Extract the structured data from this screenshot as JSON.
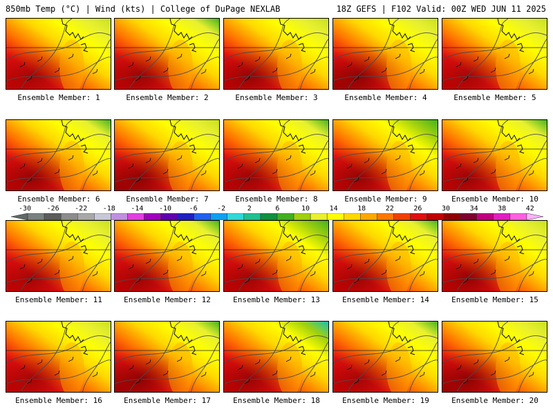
{
  "header": {
    "left": "850mb Temp (°C) | Wind (kts) | College of DuPage NEXLAB",
    "right": "18Z GEFS | F102 Valid: 00Z WED JUN 11 2025"
  },
  "members": [
    {
      "label": "Ensemble Member: 1",
      "warmth": 0.55,
      "cool_ne": 0.35
    },
    {
      "label": "Ensemble Member: 2",
      "warmth": 0.65,
      "cool_ne": 0.55
    },
    {
      "label": "Ensemble Member: 3",
      "warmth": 0.7,
      "cool_ne": 0.25
    },
    {
      "label": "Ensemble Member: 4",
      "warmth": 0.75,
      "cool_ne": 0.45
    },
    {
      "label": "Ensemble Member: 5",
      "warmth": 0.55,
      "cool_ne": 0.4
    },
    {
      "label": "Ensemble Member: 6",
      "warmth": 0.7,
      "cool_ne": 0.6
    },
    {
      "label": "Ensemble Member: 7",
      "warmth": 0.75,
      "cool_ne": 0.35
    },
    {
      "label": "Ensemble Member: 8",
      "warmth": 0.65,
      "cool_ne": 0.55
    },
    {
      "label": "Ensemble Member: 9",
      "warmth": 0.7,
      "cool_ne": 0.7
    },
    {
      "label": "Ensemble Member: 10",
      "warmth": 0.65,
      "cool_ne": 0.55
    },
    {
      "label": "Ensemble Member: 11",
      "warmth": 0.55,
      "cool_ne": 0.5
    },
    {
      "label": "Ensemble Member: 12",
      "warmth": 0.6,
      "cool_ne": 0.55
    },
    {
      "label": "Ensemble Member: 13",
      "warmth": 0.6,
      "cool_ne": 0.65
    },
    {
      "label": "Ensemble Member: 14",
      "warmth": 0.6,
      "cool_ne": 0.55
    },
    {
      "label": "Ensemble Member: 15",
      "warmth": 0.7,
      "cool_ne": 0.45
    },
    {
      "label": "Ensemble Member: 16",
      "warmth": 0.55,
      "cool_ne": 0.45
    },
    {
      "label": "Ensemble Member: 17",
      "warmth": 0.75,
      "cool_ne": 0.55
    },
    {
      "label": "Ensemble Member: 18",
      "warmth": 0.65,
      "cool_ne": 0.95
    },
    {
      "label": "Ensemble Member: 19",
      "warmth": 0.55,
      "cool_ne": 0.55
    },
    {
      "label": "Ensemble Member: 20",
      "warmth": 0.75,
      "cool_ne": 0.4
    }
  ],
  "colorbar": {
    "labels": [
      "-30",
      "-26",
      "-22",
      "-18",
      "-14",
      "-10",
      "-6",
      "-2",
      "2",
      "6",
      "10",
      "14",
      "18",
      "22",
      "26",
      "30",
      "34",
      "38",
      "42"
    ],
    "colors": [
      "#606868",
      "#788080",
      "#5c5c5c",
      "#8c8c8c",
      "#a8a8a8",
      "#c8c8d8",
      "#c090e0",
      "#e040e0",
      "#a000c0",
      "#6000b0",
      "#2020c0",
      "#2060f0",
      "#10a0f0",
      "#30d8d8",
      "#20c090",
      "#109040",
      "#40b020",
      "#a0d010",
      "#e8f030",
      "#ffff00",
      "#ffd800",
      "#ffa800",
      "#ff7800",
      "#f04000",
      "#e01010",
      "#c00000",
      "#900000",
      "#800030",
      "#c00080",
      "#e020c0",
      "#ff60e0",
      "#ffb0ff"
    ]
  }
}
